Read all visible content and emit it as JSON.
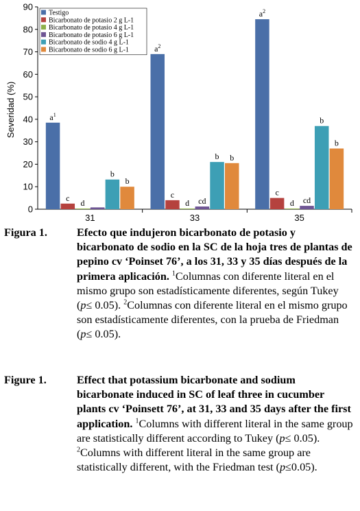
{
  "chart_data": {
    "type": "bar",
    "ylabel": "Severidad (%)",
    "ylim": [
      0,
      90
    ],
    "yticks": [
      0,
      10,
      20,
      30,
      40,
      50,
      60,
      70,
      80,
      90
    ],
    "categories": [
      "31",
      "33",
      "35"
    ],
    "legend_position": "top-left",
    "series": [
      {
        "name": "Testigo",
        "color": "#4a6fa8",
        "values": [
          38.5,
          69,
          84.5
        ],
        "labels": [
          "a1",
          "a2",
          "a2"
        ]
      },
      {
        "name": "Bicarbonato de potasio 2 g L-1",
        "color": "#b5423e",
        "values": [
          2.5,
          4,
          5
        ],
        "labels": [
          "c",
          "c",
          "c"
        ]
      },
      {
        "name": "Bicarbonato de potasio 4 g L-1",
        "color": "#8eb04a",
        "values": [
          0.3,
          0.3,
          0.3
        ],
        "labels": [
          "d",
          "d",
          "d"
        ]
      },
      {
        "name": "Bicarbonato de potasio 6 g L-1",
        "color": "#6e5594",
        "values": [
          0.8,
          1.2,
          1.5
        ],
        "labels": [
          "",
          "cd",
          "cd"
        ]
      },
      {
        "name": "Bicarbonato de sodio  4 g L-1",
        "color": "#3d9fb5",
        "values": [
          13.2,
          21,
          37
        ],
        "labels": [
          "b",
          "b",
          "b"
        ]
      },
      {
        "name": "Bicarbonato de sodio 6 g L-1",
        "color": "#e0893c",
        "values": [
          10,
          20.5,
          27
        ],
        "labels": [
          "b",
          "b",
          "b"
        ]
      }
    ]
  },
  "caption_es": {
    "label": "Figura 1.",
    "title": "Efecto que indujeron bicarbonato de potasio y bicarbonato de sodio en la SC de la hoja tres de plantas de pepino cv ‘Poinset 76’, a los 31, 33 y 35 días después de la primera aplicación.",
    "note1_sup": "1",
    "note1": "Columnas con diferente literal en el mismo grupo son estadísticamente diferentes, según Tukey (",
    "p_symbol": "p",
    "note1_tail": "≤ 0.05).",
    "note2_sup": "2",
    "note2": "Columnas con diferente literal en el mismo grupo son estadísticamente diferentes, con la prueba de Friedman (",
    "note2_tail": "≤ 0.05)."
  },
  "caption_en": {
    "label": "Figure 1.",
    "title": "Effect that potassium bicarbonate and sodium bicarbonate induced in SC of leaf three in cucumber plants cv ‘Poinsett 76’, at 31, 33 and 35 days after the first application.",
    "note1_sup": "1",
    "note1": "Columns with different literal in the same group are statistically different according to Tukey (",
    "p_symbol": "p",
    "note1_tail": "≤ 0.05).",
    "note2_sup": "2",
    "note2": "Columns with different literal in the same group are statistically different, with the Friedman test (",
    "note2_tail": "≤0.05)."
  }
}
